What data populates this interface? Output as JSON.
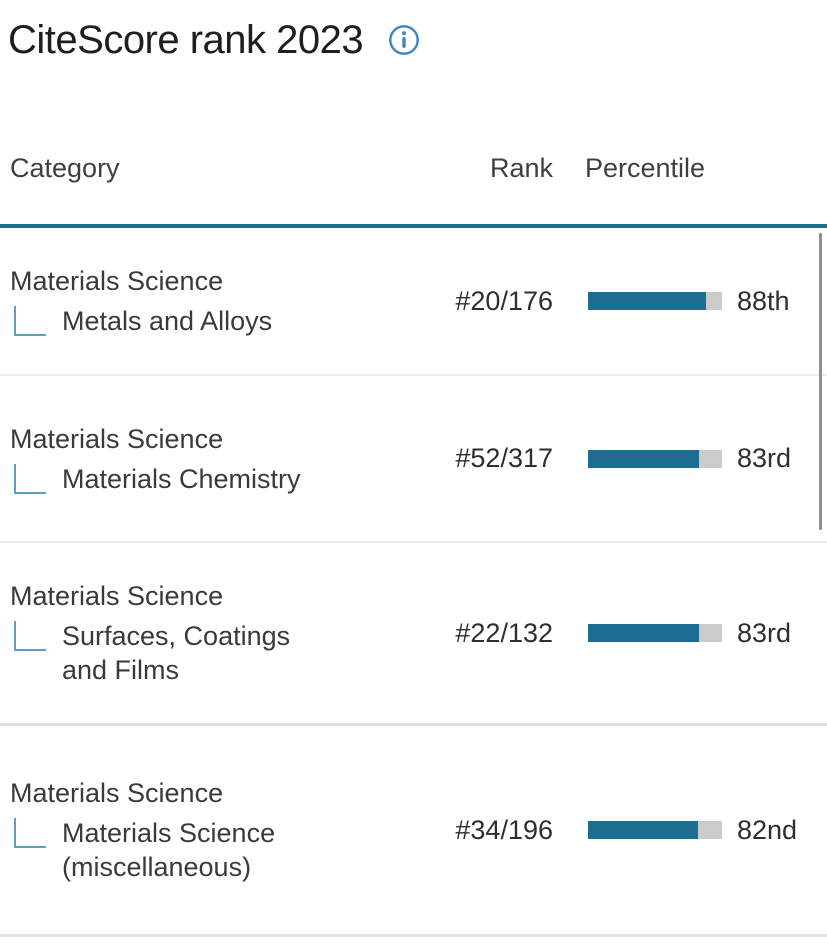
{
  "page": {
    "title": "CiteScore rank 2023"
  },
  "colors": {
    "accent_teal": "#1B6E91",
    "header_rule": "#17708F",
    "bar_track": "#CBCBCB",
    "connector_blue": "#5C9FC5",
    "info_icon_blue": "#3D85C6",
    "divider": "#ECECEC"
  },
  "table": {
    "headers": {
      "category": "Category",
      "rank": "Rank",
      "percentile": "Percentile"
    },
    "rows": [
      {
        "parent": "Materials Science",
        "subcategory": "Metals and Alloys",
        "rank": "#20/176",
        "percentile": 88,
        "percentile_label": "88th"
      },
      {
        "parent": "Materials Science",
        "subcategory": "Materials Chemistry",
        "rank": "#52/317",
        "percentile": 83,
        "percentile_label": "83rd"
      },
      {
        "parent": "Materials Science",
        "subcategory": "Surfaces, Coatings and Films",
        "rank": "#22/132",
        "percentile": 83,
        "percentile_label": "83rd"
      },
      {
        "parent": "Materials Science",
        "subcategory": "Materials Science (miscellaneous)",
        "rank": "#34/196",
        "percentile": 82,
        "percentile_label": "82nd"
      }
    ]
  }
}
